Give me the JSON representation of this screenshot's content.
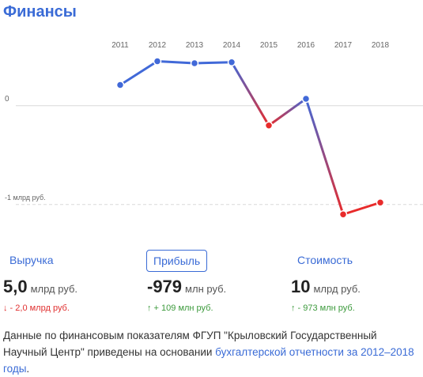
{
  "title": "Финансы",
  "chart_data": {
    "type": "line",
    "x": [
      "2011",
      "2012",
      "2013",
      "2014",
      "2015",
      "2016",
      "2017",
      "2018"
    ],
    "series": [
      {
        "values": [
          0.21,
          0.45,
          0.43,
          0.44,
          -0.2,
          0.07,
          -1.1,
          -0.98
        ]
      }
    ],
    "ylim": [
      -1.25,
      0.75
    ],
    "y_tick_labels": [
      {
        "value": 0,
        "label": "0"
      },
      {
        "value": -1,
        "label": "-1 млрд руб."
      }
    ],
    "colors": {
      "positive": "#4169d8",
      "negative": "#e82b2b"
    }
  },
  "tabs": [
    {
      "label": "Выручка",
      "active": false
    },
    {
      "label": "Прибыль",
      "active": true
    },
    {
      "label": "Стоимость",
      "active": false
    }
  ],
  "metrics": [
    {
      "value": "5,0",
      "unit": "млрд руб.",
      "delta": "↓ - 2,0 млрд руб.",
      "trend": "down"
    },
    {
      "value": "-979",
      "unit": "млн руб.",
      "delta": "↑ + 109 млн руб.",
      "trend": "up"
    },
    {
      "value": "10",
      "unit": "млрд руб.",
      "delta": "↑ - 973 млн руб.",
      "trend": "up"
    }
  ],
  "description": {
    "text_before": "Данные по финансовым показателям ФГУП \"Крыловский Государственный Научный Центр\" приведены на основании ",
    "link_text": "бухгалтерской отчетности за 2012–2018 годы",
    "text_after": "."
  }
}
